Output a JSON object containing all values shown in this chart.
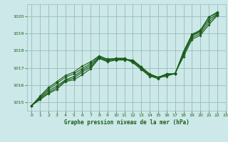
{
  "background_color": "#cce8e8",
  "grid_color": "#99bbbb",
  "line_color": "#1a5c1a",
  "xlabel": "Graphe pression niveau de la mer (hPa)",
  "xlim": [
    -0.5,
    23
  ],
  "ylim": [
    1014.5,
    1020.7
  ],
  "xticks": [
    0,
    1,
    2,
    3,
    4,
    5,
    6,
    7,
    8,
    9,
    10,
    11,
    12,
    13,
    14,
    15,
    16,
    17,
    18,
    19,
    20,
    21,
    22,
    23
  ],
  "yticks": [
    1015,
    1016,
    1017,
    1018,
    1019,
    1020
  ],
  "lines": [
    [
      1014.8,
      1015.15,
      1015.5,
      1015.75,
      1016.2,
      1016.3,
      1016.6,
      1016.95,
      1017.55,
      1017.35,
      1017.45,
      1017.45,
      1017.45,
      1017.05,
      1016.55,
      1016.35,
      1016.65,
      1016.65,
      1017.9,
      1018.9,
      1019.15,
      1019.95,
      1020.25
    ],
    [
      1014.8,
      1015.2,
      1015.55,
      1015.85,
      1016.25,
      1016.4,
      1016.75,
      1017.05,
      1017.55,
      1017.4,
      1017.5,
      1017.5,
      1017.45,
      1017.05,
      1016.65,
      1016.45,
      1016.65,
      1016.65,
      1017.95,
      1018.95,
      1019.2,
      1019.95,
      1020.2
    ],
    [
      1014.8,
      1015.25,
      1015.65,
      1015.95,
      1016.3,
      1016.5,
      1016.85,
      1017.15,
      1017.6,
      1017.45,
      1017.5,
      1017.5,
      1017.4,
      1017.0,
      1016.6,
      1016.45,
      1016.6,
      1016.65,
      1017.85,
      1018.85,
      1019.1,
      1019.8,
      1020.15
    ],
    [
      1014.8,
      1015.3,
      1015.75,
      1016.1,
      1016.45,
      1016.65,
      1016.95,
      1017.25,
      1017.65,
      1017.5,
      1017.55,
      1017.55,
      1017.35,
      1016.95,
      1016.55,
      1016.45,
      1016.55,
      1016.65,
      1017.75,
      1018.75,
      1019.0,
      1019.65,
      1020.1
    ],
    [
      1014.8,
      1015.35,
      1015.85,
      1016.2,
      1016.55,
      1016.75,
      1017.1,
      1017.35,
      1017.7,
      1017.5,
      1017.55,
      1017.55,
      1017.3,
      1016.9,
      1016.5,
      1016.45,
      1016.5,
      1016.7,
      1017.65,
      1018.65,
      1018.9,
      1019.5,
      1020.05
    ]
  ]
}
